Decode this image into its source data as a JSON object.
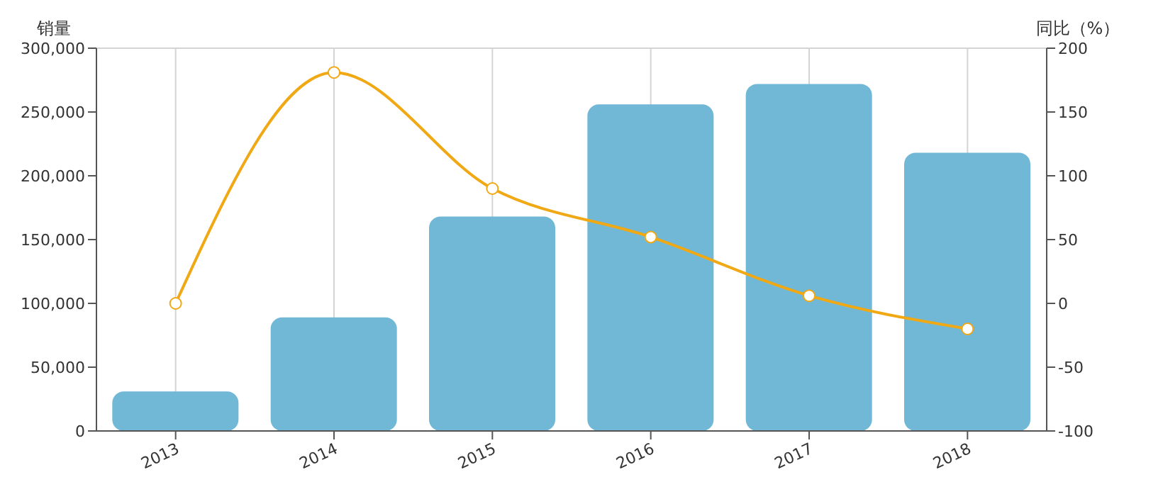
{
  "chart_data": {
    "type": "bar",
    "ylabel": "销量",
    "y2label": "同比（%）",
    "categories": [
      "2013",
      "2014",
      "2015",
      "2016",
      "2017",
      "2018"
    ],
    "series": [
      {
        "color": "#70b8d6",
        "values": [
          31000,
          89000,
          168000,
          256000,
          272000,
          218000
        ]
      },
      {
        "type": "line",
        "axis": "y2",
        "color": "#f0a814",
        "values": [
          0,
          181,
          90,
          52,
          6,
          -20
        ]
      }
    ],
    "ylim": [
      0,
      300000
    ],
    "yticks": [
      {
        "value": 0,
        "label": "0"
      },
      {
        "value": 50000,
        "label": "50,000"
      },
      {
        "value": 100000,
        "label": "100,000"
      },
      {
        "value": 150000,
        "label": "150,000"
      },
      {
        "value": 200000,
        "label": "200,000"
      },
      {
        "value": 250000,
        "label": "250,000"
      },
      {
        "value": 300000,
        "label": "300,000"
      }
    ],
    "y2lim": [
      -100,
      200
    ],
    "y2ticks": [
      -100,
      -50,
      0,
      50,
      100,
      150,
      200
    ],
    "grid": true,
    "legend": false,
    "marker": "circle",
    "line_style": "solid"
  }
}
